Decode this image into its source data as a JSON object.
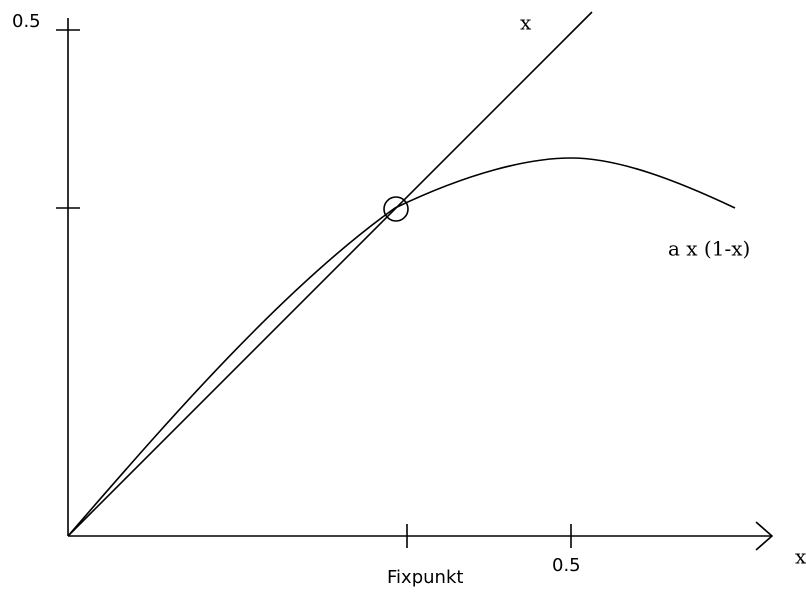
{
  "axes": {
    "y_tick_label": "0.5",
    "x_tick_label": "0.5",
    "x_axis_label": "x"
  },
  "diagonal_label": "x",
  "curve_label": "a x (1-x)",
  "fixpoint_label": "Fixpunkt"
}
